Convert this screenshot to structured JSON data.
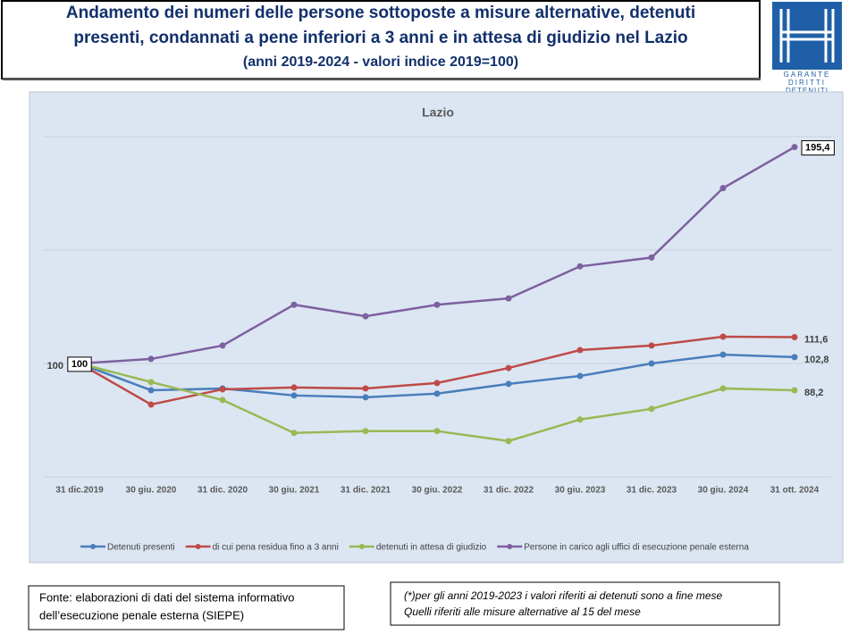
{
  "header": {
    "title_lines": [
      "Andamento dei numeri delle persone sottoposte a misure alternative, detenuti",
      "presenti, condannati a pene inferiori a 3 anni e in attesa di giudizio nel Lazio",
      "(anni 2019-2024  - valori indice 2019=100)"
    ]
  },
  "logo": {
    "lines": [
      "GARANTE",
      "DIRITTI",
      "DETENUTI"
    ]
  },
  "chart_data": {
    "type": "line",
    "title": "Lazio",
    "categories": [
      "31 dic.2019",
      "30 giu. 2020",
      "31 dic. 2020",
      "30 giu. 2021",
      "31 dic. 2021",
      "30 giu. 2022",
      "31 dic. 2022",
      "30 giu. 2023",
      "31 dic. 2023",
      "30 giu. 2024",
      "31 ott. 2024"
    ],
    "ylim": [
      50,
      200
    ],
    "yticks": [
      100
    ],
    "grid_lines": [
      50,
      100,
      150,
      200
    ],
    "grid": true,
    "legend": "bottom",
    "series": [
      {
        "name": "Detenuti presenti",
        "color": "#4a7ebb",
        "values": [
          100,
          88.2,
          89.0,
          85.9,
          85.1,
          86.7,
          91.0,
          94.5,
          100.0,
          103.9,
          102.8
        ],
        "value_labels": [
          null,
          null,
          null,
          null,
          null,
          null,
          null,
          null,
          null,
          null,
          "102,8"
        ]
      },
      {
        "name": "di cui pena residua fino a 3 anni",
        "color": "#be4b48",
        "values": [
          100,
          81.9,
          88.6,
          89.4,
          89.0,
          91.4,
          98.0,
          105.9,
          107.9,
          111.8,
          111.6
        ],
        "value_labels": [
          null,
          null,
          null,
          null,
          null,
          null,
          null,
          null,
          null,
          null,
          "111,6"
        ]
      },
      {
        "name": "detenuti in attesa di giudizio",
        "color": "#98b954",
        "values": [
          100,
          91.8,
          83.9,
          69.4,
          70.2,
          70.2,
          65.8,
          75.3,
          80.0,
          89.0,
          88.2
        ],
        "value_labels": [
          null,
          null,
          null,
          null,
          null,
          null,
          null,
          null,
          null,
          null,
          "88,2"
        ]
      },
      {
        "name": "Persone in carico agli uffici di esecuzione penale esterna",
        "color": "#7d60a0",
        "boxed_labels": true,
        "values": [
          100,
          102.0,
          107.9,
          125.9,
          120.8,
          125.9,
          128.7,
          142.8,
          146.7,
          177.3,
          195.4
        ],
        "value_labels": [
          "100",
          null,
          null,
          null,
          null,
          null,
          null,
          null,
          null,
          null,
          "195,4"
        ]
      }
    ]
  },
  "notes": {
    "source": [
      "Fonte: elaborazioni di dati del sistema informativo",
      "dell’esecuzione penale esterna (SIEPE)"
    ],
    "footnote": [
      "(*)per gli anni 2019-2023  i valori riferiti ai detenuti sono a fine mese",
      "Quelli riferiti alle misure alternative al 15 del mese"
    ]
  }
}
